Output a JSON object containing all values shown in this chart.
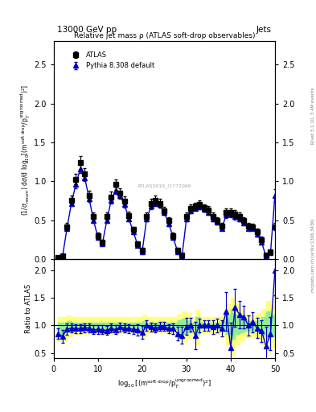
{
  "title_top": "13000 GeV pp",
  "title_right": "Jets",
  "plot_title": "Relative jet mass ρ (ATLAS soft-drop observables)",
  "ylabel_main": "(1/σ_{resum}) dσ/d log_{10}[(m^{soft drop}/p_T^{ungroomed})^2]",
  "ylabel_ratio": "Ratio to ATLAS",
  "xlabel": "log_{10}[(m^{soft drop}/p_T^{ungroomed})^2]",
  "rivet_label": "Rivet 3.1.10, 3.4M events",
  "arxiv_label": "mcplots.cern.ch [arXiv:1306.3436]",
  "atlas_label": "ATLAS2019_I1772066",
  "atlas_x": [
    1.0,
    2.0,
    3.0,
    4.0,
    5.0,
    6.0,
    7.0,
    8.0,
    9.0,
    10.0,
    11.0,
    12.0,
    13.0,
    14.0,
    15.0,
    16.0,
    17.0,
    18.0,
    19.0,
    20.0,
    21.0,
    22.0,
    23.0,
    24.0,
    25.0,
    26.0,
    27.0,
    28.0,
    29.0,
    30.0,
    31.0,
    32.0,
    33.0,
    34.0,
    35.0,
    36.0,
    37.0,
    38.0,
    39.0,
    40.0,
    41.0,
    42.0,
    43.0,
    44.0,
    45.0,
    46.0,
    47.0,
    48.0,
    49.0,
    50.0
  ],
  "atlas_y": [
    0.02,
    0.04,
    0.42,
    0.76,
    1.03,
    1.24,
    1.1,
    0.82,
    0.55,
    0.3,
    0.22,
    0.55,
    0.8,
    0.96,
    0.85,
    0.75,
    0.56,
    0.38,
    0.2,
    0.12,
    0.55,
    0.72,
    0.76,
    0.72,
    0.62,
    0.5,
    0.3,
    0.12,
    0.05,
    0.55,
    0.65,
    0.68,
    0.7,
    0.66,
    0.63,
    0.55,
    0.5,
    0.43,
    0.6,
    0.6,
    0.58,
    0.55,
    0.5,
    0.43,
    0.42,
    0.35,
    0.25,
    0.05,
    0.1,
    0.42
  ],
  "atlas_yerr": [
    0.01,
    0.02,
    0.05,
    0.06,
    0.07,
    0.08,
    0.07,
    0.06,
    0.05,
    0.04,
    0.03,
    0.05,
    0.07,
    0.07,
    0.06,
    0.06,
    0.05,
    0.04,
    0.03,
    0.03,
    0.05,
    0.06,
    0.06,
    0.06,
    0.05,
    0.04,
    0.04,
    0.03,
    0.02,
    0.05,
    0.05,
    0.05,
    0.06,
    0.05,
    0.05,
    0.05,
    0.04,
    0.04,
    0.05,
    0.05,
    0.05,
    0.05,
    0.04,
    0.04,
    0.04,
    0.04,
    0.04,
    0.02,
    0.03,
    0.05
  ],
  "pythia_x": [
    1.0,
    2.0,
    3.0,
    4.0,
    5.0,
    6.0,
    7.0,
    8.0,
    9.0,
    10.0,
    11.0,
    12.0,
    13.0,
    14.0,
    15.0,
    16.0,
    17.0,
    18.0,
    19.0,
    20.0,
    21.0,
    22.0,
    23.0,
    24.0,
    25.0,
    26.0,
    27.0,
    28.0,
    29.0,
    30.0,
    31.0,
    32.0,
    33.0,
    34.0,
    35.0,
    36.0,
    37.0,
    38.0,
    39.0,
    40.0,
    41.0,
    42.0,
    43.0,
    44.0,
    45.0,
    46.0,
    47.0,
    48.0,
    49.0,
    50.0
  ],
  "pythia_y": [
    0.02,
    0.04,
    0.4,
    0.72,
    0.96,
    1.16,
    1.05,
    0.78,
    0.5,
    0.28,
    0.2,
    0.5,
    0.76,
    0.88,
    0.82,
    0.7,
    0.52,
    0.35,
    0.18,
    0.1,
    0.52,
    0.68,
    0.72,
    0.7,
    0.6,
    0.46,
    0.28,
    0.1,
    0.04,
    0.52,
    0.62,
    0.65,
    0.68,
    0.64,
    0.6,
    0.52,
    0.48,
    0.4,
    0.57,
    0.58,
    0.55,
    0.52,
    0.47,
    0.4,
    0.4,
    0.32,
    0.22,
    0.03,
    0.08,
    0.82
  ],
  "pythia_yerr": [
    0.005,
    0.01,
    0.03,
    0.04,
    0.05,
    0.05,
    0.05,
    0.04,
    0.03,
    0.02,
    0.02,
    0.03,
    0.04,
    0.04,
    0.04,
    0.04,
    0.03,
    0.03,
    0.02,
    0.02,
    0.03,
    0.04,
    0.04,
    0.04,
    0.03,
    0.03,
    0.02,
    0.02,
    0.01,
    0.03,
    0.03,
    0.03,
    0.04,
    0.03,
    0.03,
    0.03,
    0.03,
    0.03,
    0.04,
    0.04,
    0.04,
    0.03,
    0.03,
    0.03,
    0.03,
    0.03,
    0.02,
    0.01,
    0.02,
    0.08
  ],
  "ratio_pythia_y": [
    0.85,
    0.8,
    0.93,
    0.95,
    0.94,
    0.94,
    0.96,
    0.95,
    0.92,
    0.93,
    0.92,
    0.91,
    0.95,
    0.92,
    0.97,
    0.95,
    0.94,
    0.93,
    0.92,
    0.87,
    1.0,
    0.97,
    0.95,
    0.98,
    0.98,
    0.94,
    0.94,
    0.85,
    0.82,
    0.98,
    1.01,
    0.82,
    1.0,
    1.0,
    1.0,
    0.97,
    1.0,
    0.95,
    1.26,
    0.6,
    1.32,
    1.2,
    1.15,
    1.0,
    1.06,
    0.95,
    0.9,
    0.62,
    0.85,
    2.0
  ],
  "ratio_pythia_yerr": [
    0.1,
    0.12,
    0.1,
    0.08,
    0.08,
    0.08,
    0.08,
    0.08,
    0.08,
    0.08,
    0.08,
    0.08,
    0.08,
    0.08,
    0.08,
    0.08,
    0.08,
    0.08,
    0.1,
    0.12,
    0.1,
    0.08,
    0.08,
    0.08,
    0.08,
    0.08,
    0.1,
    0.12,
    0.15,
    0.15,
    0.12,
    0.25,
    0.12,
    0.1,
    0.1,
    0.12,
    0.12,
    0.15,
    0.35,
    0.45,
    0.35,
    0.25,
    0.2,
    0.18,
    0.18,
    0.18,
    0.2,
    0.35,
    0.3,
    0.45
  ],
  "band_x": [
    1.0,
    2.0,
    3.0,
    4.0,
    5.0,
    6.0,
    7.0,
    8.0,
    9.0,
    10.0,
    11.0,
    12.0,
    13.0,
    14.0,
    15.0,
    16.0,
    17.0,
    18.0,
    19.0,
    20.0,
    21.0,
    22.0,
    23.0,
    24.0,
    25.0,
    26.0,
    27.0,
    28.0,
    29.0,
    30.0,
    31.0,
    32.0,
    33.0,
    34.0,
    35.0,
    36.0,
    37.0,
    38.0,
    39.0,
    40.0,
    41.0,
    42.0,
    43.0,
    44.0,
    45.0,
    46.0,
    47.0,
    48.0,
    49.0,
    50.0
  ],
  "band_green_lo": [
    0.85,
    0.87,
    0.9,
    0.93,
    0.93,
    0.93,
    0.93,
    0.93,
    0.93,
    0.93,
    0.93,
    0.93,
    0.93,
    0.93,
    0.95,
    0.95,
    0.95,
    0.95,
    0.93,
    0.9,
    0.95,
    0.95,
    0.95,
    0.95,
    0.95,
    0.93,
    0.93,
    0.88,
    0.85,
    0.88,
    0.93,
    0.85,
    0.95,
    0.95,
    0.95,
    0.93,
    0.93,
    0.9,
    0.85,
    0.75,
    0.85,
    0.88,
    0.9,
    0.9,
    0.9,
    0.88,
    0.82,
    0.75,
    0.8,
    0.88
  ],
  "band_green_hi": [
    1.05,
    1.05,
    1.08,
    1.05,
    1.05,
    1.05,
    1.05,
    1.05,
    1.05,
    1.05,
    1.05,
    1.05,
    1.05,
    1.05,
    1.05,
    1.05,
    1.05,
    1.05,
    1.05,
    1.08,
    1.05,
    1.05,
    1.05,
    1.05,
    1.05,
    1.05,
    1.05,
    1.1,
    1.12,
    1.1,
    1.05,
    1.15,
    1.05,
    1.05,
    1.05,
    1.05,
    1.05,
    1.08,
    1.2,
    1.3,
    1.2,
    1.15,
    1.1,
    1.08,
    1.08,
    1.1,
    1.15,
    1.25,
    1.2,
    1.12
  ],
  "band_yellow_lo": [
    0.72,
    0.72,
    0.8,
    0.85,
    0.85,
    0.85,
    0.85,
    0.85,
    0.85,
    0.85,
    0.85,
    0.85,
    0.85,
    0.85,
    0.88,
    0.88,
    0.88,
    0.88,
    0.85,
    0.8,
    0.88,
    0.88,
    0.88,
    0.88,
    0.88,
    0.85,
    0.85,
    0.75,
    0.7,
    0.75,
    0.85,
    0.65,
    0.88,
    0.88,
    0.88,
    0.85,
    0.85,
    0.8,
    0.65,
    0.45,
    0.65,
    0.72,
    0.78,
    0.78,
    0.78,
    0.75,
    0.65,
    0.5,
    0.6,
    0.72
  ],
  "band_yellow_hi": [
    1.15,
    1.15,
    1.18,
    1.15,
    1.15,
    1.15,
    1.15,
    1.15,
    1.15,
    1.15,
    1.15,
    1.15,
    1.15,
    1.15,
    1.15,
    1.15,
    1.15,
    1.15,
    1.15,
    1.2,
    1.15,
    1.15,
    1.15,
    1.15,
    1.15,
    1.15,
    1.15,
    1.2,
    1.25,
    1.22,
    1.15,
    1.28,
    1.15,
    1.15,
    1.15,
    1.15,
    1.15,
    1.2,
    1.38,
    1.5,
    1.38,
    1.28,
    1.2,
    1.18,
    1.18,
    1.22,
    1.3,
    1.45,
    1.35,
    1.25
  ],
  "xlim": [
    0,
    50
  ],
  "ylim_main": [
    0,
    2.8
  ],
  "ylim_ratio": [
    0.4,
    2.2
  ],
  "yticks_main": [
    0.0,
    0.5,
    1.0,
    1.5,
    2.0,
    2.5
  ],
  "yticks_ratio": [
    0.5,
    1.0,
    1.5,
    2.0
  ],
  "atlas_color": "#000000",
  "pythia_color": "#0000cc",
  "band_green_color": "#90ee90",
  "band_yellow_color": "#ffff80",
  "marker_atlas": "s",
  "marker_pythia": "^",
  "markersize_atlas": 4,
  "markersize_pythia": 4,
  "linewidth": 1.0,
  "background_color": "#ffffff"
}
